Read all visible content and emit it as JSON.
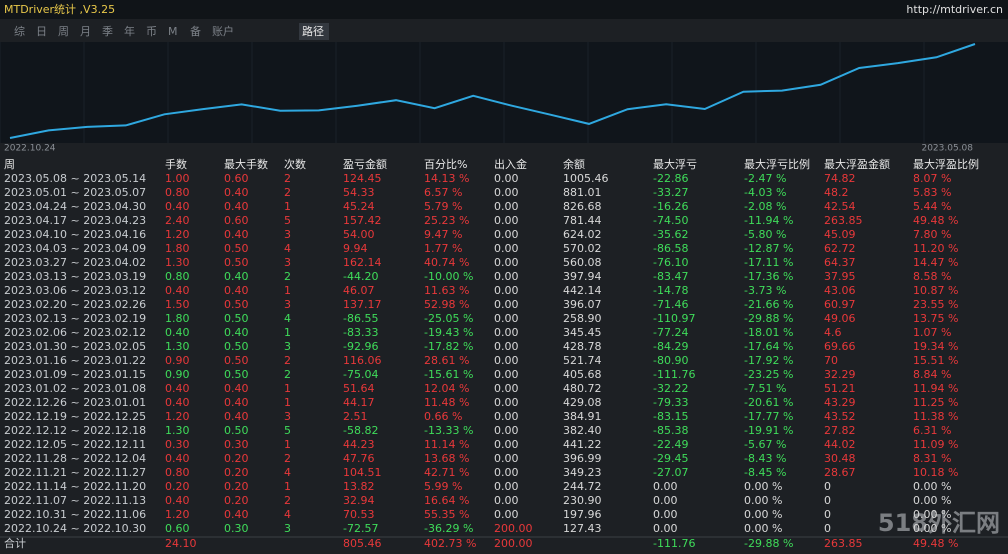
{
  "header": {
    "title": "MTDriver统计 ,V3.25",
    "url": "http://mtdriver.cn"
  },
  "tabs": [
    "综",
    "日",
    "周",
    "月",
    "季",
    "年",
    "币",
    "M",
    "备",
    "账户",
    "路径"
  ],
  "chart": {
    "start_label": "2022.10.24",
    "end_label": "2023.05.08"
  },
  "table": {
    "columns": [
      "周",
      "手数",
      "最大手数",
      "次数",
      "盈亏金额",
      "百分比%",
      "出入金",
      "余额",
      "最大浮亏",
      "最大浮亏比例",
      "最大浮盈金额",
      "最大浮盈比例"
    ],
    "rows": [
      [
        "2023.05.08 ~ 2023.05.14",
        "1.00",
        "0.60",
        "2",
        "124.45",
        "14.13 %",
        "0.00",
        "1005.46",
        "-22.86",
        "-2.47 %",
        "74.82",
        "8.07 %"
      ],
      [
        "2023.05.01 ~ 2023.05.07",
        "0.80",
        "0.40",
        "2",
        "54.33",
        "6.57 %",
        "0.00",
        "881.01",
        "-33.27",
        "-4.03 %",
        "48.2",
        "5.83 %"
      ],
      [
        "2023.04.24 ~ 2023.04.30",
        "0.40",
        "0.40",
        "1",
        "45.24",
        "5.79 %",
        "0.00",
        "826.68",
        "-16.26",
        "-2.08 %",
        "42.54",
        "5.44 %"
      ],
      [
        "2023.04.17 ~ 2023.04.23",
        "2.40",
        "0.60",
        "5",
        "157.42",
        "25.23 %",
        "0.00",
        "781.44",
        "-74.50",
        "-11.94 %",
        "263.85",
        "49.48 %"
      ],
      [
        "2023.04.10 ~ 2023.04.16",
        "1.20",
        "0.40",
        "3",
        "54.00",
        "9.47 %",
        "0.00",
        "624.02",
        "-35.62",
        "-5.80 %",
        "45.09",
        "7.80 %"
      ],
      [
        "2023.04.03 ~ 2023.04.09",
        "1.80",
        "0.50",
        "4",
        "9.94",
        "1.77 %",
        "0.00",
        "570.02",
        "-86.58",
        "-12.87 %",
        "62.72",
        "11.20 %"
      ],
      [
        "2023.03.27 ~ 2023.04.02",
        "1.30",
        "0.50",
        "3",
        "162.14",
        "40.74 %",
        "0.00",
        "560.08",
        "-76.10",
        "-17.11 %",
        "64.37",
        "14.47 %"
      ],
      [
        "2023.03.13 ~ 2023.03.19",
        "0.80",
        "0.40",
        "2",
        "-44.20",
        "-10.00 %",
        "0.00",
        "397.94",
        "-83.47",
        "-17.36 %",
        "37.95",
        "8.58 %"
      ],
      [
        "2023.03.06 ~ 2023.03.12",
        "0.40",
        "0.40",
        "1",
        "46.07",
        "11.63 %",
        "0.00",
        "442.14",
        "-14.78",
        "-3.73 %",
        "43.06",
        "10.87 %"
      ],
      [
        "2023.02.20 ~ 2023.02.26",
        "1.50",
        "0.50",
        "3",
        "137.17",
        "52.98 %",
        "0.00",
        "396.07",
        "-71.46",
        "-21.66 %",
        "60.97",
        "23.55 %"
      ],
      [
        "2023.02.13 ~ 2023.02.19",
        "1.80",
        "0.50",
        "4",
        "-86.55",
        "-25.05 %",
        "0.00",
        "258.90",
        "-110.97",
        "-29.88 %",
        "49.06",
        "13.75 %"
      ],
      [
        "2023.02.06 ~ 2023.02.12",
        "0.40",
        "0.40",
        "1",
        "-83.33",
        "-19.43 %",
        "0.00",
        "345.45",
        "-77.24",
        "-18.01 %",
        "4.6",
        "1.07 %"
      ],
      [
        "2023.01.30 ~ 2023.02.05",
        "1.30",
        "0.50",
        "3",
        "-92.96",
        "-17.82 %",
        "0.00",
        "428.78",
        "-84.29",
        "-17.64 %",
        "69.66",
        "19.34 %"
      ],
      [
        "2023.01.16 ~ 2023.01.22",
        "0.90",
        "0.50",
        "2",
        "116.06",
        "28.61 %",
        "0.00",
        "521.74",
        "-80.90",
        "-17.92 %",
        "70",
        "15.51 %"
      ],
      [
        "2023.01.09 ~ 2023.01.15",
        "0.90",
        "0.50",
        "2",
        "-75.04",
        "-15.61 %",
        "0.00",
        "405.68",
        "-111.76",
        "-23.25 %",
        "32.29",
        "8.84 %"
      ],
      [
        "2023.01.02 ~ 2023.01.08",
        "0.40",
        "0.40",
        "1",
        "51.64",
        "12.04 %",
        "0.00",
        "480.72",
        "-32.22",
        "-7.51 %",
        "51.21",
        "11.94 %"
      ],
      [
        "2022.12.26 ~ 2023.01.01",
        "0.40",
        "0.40",
        "1",
        "44.17",
        "11.48 %",
        "0.00",
        "429.08",
        "-79.33",
        "-20.61 %",
        "43.29",
        "11.25 %"
      ],
      [
        "2022.12.19 ~ 2022.12.25",
        "1.20",
        "0.40",
        "3",
        "2.51",
        "0.66 %",
        "0.00",
        "384.91",
        "-83.15",
        "-17.77 %",
        "43.52",
        "11.38 %"
      ],
      [
        "2022.12.12 ~ 2022.12.18",
        "1.30",
        "0.50",
        "5",
        "-58.82",
        "-13.33 %",
        "0.00",
        "382.40",
        "-85.38",
        "-19.91 %",
        "27.82",
        "6.31 %"
      ],
      [
        "2022.12.05 ~ 2022.12.11",
        "0.30",
        "0.30",
        "1",
        "44.23",
        "11.14 %",
        "0.00",
        "441.22",
        "-22.49",
        "-5.67 %",
        "44.02",
        "11.09 %"
      ],
      [
        "2022.11.28 ~ 2022.12.04",
        "0.40",
        "0.20",
        "2",
        "47.76",
        "13.68 %",
        "0.00",
        "396.99",
        "-29.45",
        "-8.43 %",
        "30.48",
        "8.31 %"
      ],
      [
        "2022.11.21 ~ 2022.11.27",
        "0.80",
        "0.20",
        "4",
        "104.51",
        "42.71 %",
        "0.00",
        "349.23",
        "-27.07",
        "-8.45 %",
        "28.67",
        "10.18 %"
      ],
      [
        "2022.11.14 ~ 2022.11.20",
        "0.20",
        "0.20",
        "1",
        "13.82",
        "5.99 %",
        "0.00",
        "244.72",
        "0.00",
        "0.00 %",
        "0",
        "0.00 %"
      ],
      [
        "2022.11.07 ~ 2022.11.13",
        "0.40",
        "0.20",
        "2",
        "32.94",
        "16.64 %",
        "0.00",
        "230.90",
        "0.00",
        "0.00 %",
        "0",
        "0.00 %"
      ],
      [
        "2022.10.31 ~ 2022.11.06",
        "1.20",
        "0.40",
        "4",
        "70.53",
        "55.35 %",
        "0.00",
        "197.96",
        "0.00",
        "0.00 %",
        "0",
        "0.00 %"
      ],
      [
        "2022.10.24 ~ 2022.10.30",
        "0.60",
        "0.30",
        "3",
        "-72.57",
        "-36.29 %",
        "200.00",
        "127.43",
        "0.00",
        "0.00 %",
        "0",
        "0.00 %"
      ]
    ],
    "total": [
      "合计",
      "24.10",
      null,
      null,
      "805.46",
      "402.73 %",
      "200.00",
      null,
      "-111.76",
      "-29.88 %",
      "263.85",
      "49.48 %"
    ]
  },
  "watermark": "518外汇网"
}
